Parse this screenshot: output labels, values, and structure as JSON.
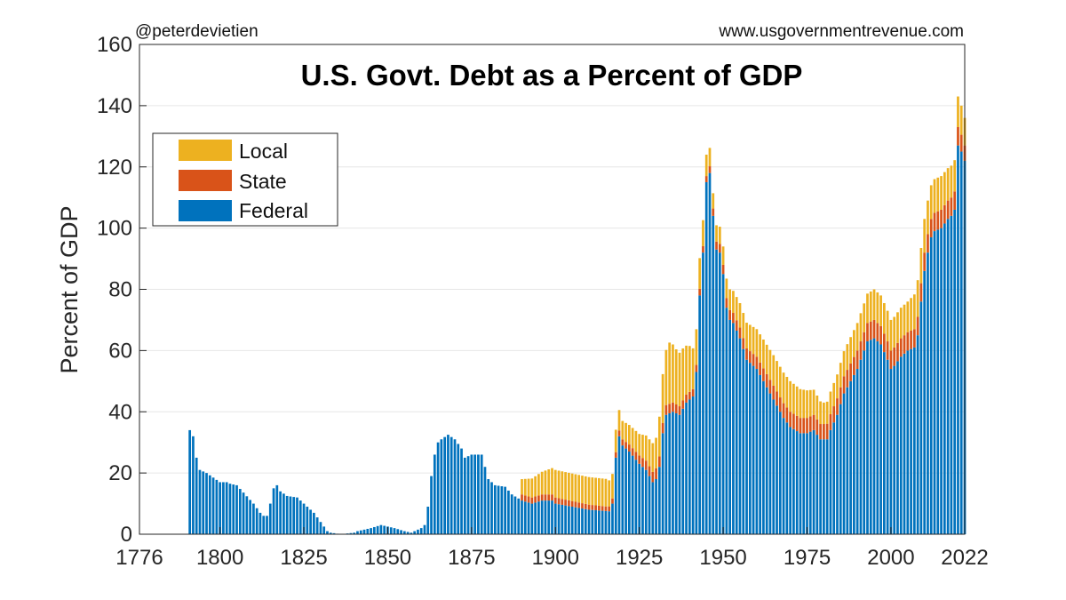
{
  "credit_left": "@peterdevietien",
  "credit_right": "www.usgovernmentrevenue.com",
  "chart_data": {
    "type": "bar",
    "stacked": true,
    "title": "U.S. Govt. Debt as a Percent of GDP",
    "xlabel": "",
    "ylabel": "Percent of GDP",
    "xlim": [
      1776,
      2022
    ],
    "ylim": [
      0,
      160
    ],
    "xticks": [
      1776,
      1800,
      1825,
      1850,
      1875,
      1900,
      1925,
      1950,
      1975,
      2000,
      2022
    ],
    "yticks": [
      0,
      20,
      40,
      60,
      80,
      100,
      120,
      140,
      160
    ],
    "grid": "horizontal",
    "legend": {
      "position": "top-left",
      "entries": [
        "Local",
        "State",
        "Federal"
      ]
    },
    "colors": {
      "Federal": "#0072bd",
      "State": "#d95319",
      "Local": "#edb120"
    },
    "x_years_start": 1791,
    "x_years_end": 2022,
    "federal_keypoints": [
      [
        1791,
        34
      ],
      [
        1792,
        32
      ],
      [
        1793,
        25
      ],
      [
        1794,
        21
      ],
      [
        1796,
        20
      ],
      [
        1800,
        17
      ],
      [
        1802,
        17
      ],
      [
        1803,
        16.5
      ],
      [
        1805,
        16
      ],
      [
        1810,
        10
      ],
      [
        1812,
        7
      ],
      [
        1813,
        6
      ],
      [
        1814,
        6
      ],
      [
        1815,
        10
      ],
      [
        1816,
        15
      ],
      [
        1817,
        16
      ],
      [
        1818,
        14
      ],
      [
        1820,
        12.5
      ],
      [
        1823,
        12
      ],
      [
        1825,
        10
      ],
      [
        1828,
        7
      ],
      [
        1830,
        4
      ],
      [
        1832,
        1
      ],
      [
        1833,
        0.5
      ],
      [
        1836,
        0
      ],
      [
        1840,
        0.5
      ],
      [
        1841,
        1
      ],
      [
        1843,
        1.5
      ],
      [
        1845,
        2
      ],
      [
        1848,
        3
      ],
      [
        1850,
        2.5
      ],
      [
        1852,
        2
      ],
      [
        1855,
        1
      ],
      [
        1857,
        0.5
      ],
      [
        1860,
        2
      ],
      [
        1861,
        3
      ],
      [
        1862,
        9
      ],
      [
        1863,
        19
      ],
      [
        1864,
        26
      ],
      [
        1865,
        30
      ],
      [
        1866,
        31
      ],
      [
        1868,
        32.5
      ],
      [
        1870,
        31
      ],
      [
        1872,
        28
      ],
      [
        1873,
        25
      ],
      [
        1875,
        26
      ],
      [
        1878,
        26
      ],
      [
        1879,
        22
      ],
      [
        1880,
        18
      ],
      [
        1882,
        16
      ],
      [
        1885,
        15.5
      ],
      [
        1887,
        13
      ],
      [
        1890,
        11
      ],
      [
        1893,
        10
      ],
      [
        1896,
        11
      ],
      [
        1899,
        11
      ],
      [
        1900,
        10
      ],
      [
        1905,
        9
      ],
      [
        1910,
        8
      ],
      [
        1916,
        7.5
      ],
      [
        1917,
        10
      ],
      [
        1918,
        25
      ],
      [
        1919,
        32
      ],
      [
        1920,
        29
      ],
      [
        1922,
        27
      ],
      [
        1925,
        23
      ],
      [
        1927,
        21
      ],
      [
        1929,
        17
      ],
      [
        1930,
        18
      ],
      [
        1931,
        22
      ],
      [
        1932,
        33
      ],
      [
        1933,
        39
      ],
      [
        1935,
        40
      ],
      [
        1937,
        39
      ],
      [
        1939,
        43
      ],
      [
        1940,
        44
      ],
      [
        1941,
        45
      ],
      [
        1942,
        53
      ],
      [
        1943,
        78
      ],
      [
        1944,
        92
      ],
      [
        1945,
        115
      ],
      [
        1946,
        118
      ],
      [
        1947,
        104
      ],
      [
        1948,
        93
      ],
      [
        1949,
        92
      ],
      [
        1950,
        85
      ],
      [
        1951,
        74
      ],
      [
        1952,
        70
      ],
      [
        1953,
        69
      ],
      [
        1955,
        64
      ],
      [
        1957,
        57
      ],
      [
        1960,
        54
      ],
      [
        1963,
        48
      ],
      [
        1965,
        44
      ],
      [
        1968,
        38
      ],
      [
        1970,
        35
      ],
      [
        1973,
        33
      ],
      [
        1975,
        33
      ],
      [
        1977,
        34
      ],
      [
        1979,
        31
      ],
      [
        1981,
        31
      ],
      [
        1982,
        34
      ],
      [
        1984,
        39
      ],
      [
        1986,
        46
      ],
      [
        1988,
        50
      ],
      [
        1990,
        54
      ],
      [
        1993,
        63
      ],
      [
        1995,
        64
      ],
      [
        1997,
        62
      ],
      [
        1999,
        57
      ],
      [
        2000,
        54
      ],
      [
        2001,
        55
      ],
      [
        2003,
        58
      ],
      [
        2005,
        60
      ],
      [
        2007,
        61
      ],
      [
        2008,
        65
      ],
      [
        2009,
        76
      ],
      [
        2010,
        86
      ],
      [
        2011,
        92
      ],
      [
        2012,
        97
      ],
      [
        2013,
        99
      ],
      [
        2015,
        100
      ],
      [
        2017,
        103
      ],
      [
        2018,
        104
      ],
      [
        2019,
        106
      ],
      [
        2020,
        127
      ],
      [
        2021,
        125
      ],
      [
        2022,
        122
      ]
    ],
    "state_keypoints": [
      [
        1791,
        0
      ],
      [
        1889,
        0
      ],
      [
        1890,
        2
      ],
      [
        1900,
        2
      ],
      [
        1915,
        1.5
      ],
      [
        1920,
        2
      ],
      [
        1930,
        3.5
      ],
      [
        1935,
        3
      ],
      [
        1940,
        2.5
      ],
      [
        1945,
        2
      ],
      [
        1950,
        3
      ],
      [
        1960,
        4
      ],
      [
        1970,
        5
      ],
      [
        1980,
        5
      ],
      [
        1990,
        6
      ],
      [
        2000,
        6
      ],
      [
        2008,
        6
      ],
      [
        2010,
        6
      ],
      [
        2015,
        6
      ],
      [
        2020,
        6
      ],
      [
        2022,
        5
      ]
    ],
    "local_keypoints": [
      [
        1791,
        0
      ],
      [
        1889,
        0
      ],
      [
        1890,
        5
      ],
      [
        1895,
        7
      ],
      [
        1900,
        9
      ],
      [
        1905,
        9
      ],
      [
        1910,
        9
      ],
      [
        1915,
        9
      ],
      [
        1917,
        8
      ],
      [
        1920,
        6
      ],
      [
        1925,
        7
      ],
      [
        1930,
        10
      ],
      [
        1932,
        16
      ],
      [
        1934,
        20
      ],
      [
        1936,
        18
      ],
      [
        1938,
        17
      ],
      [
        1940,
        15
      ],
      [
        1943,
        10
      ],
      [
        1945,
        7
      ],
      [
        1947,
        5
      ],
      [
        1950,
        6
      ],
      [
        1955,
        8
      ],
      [
        1960,
        9
      ],
      [
        1965,
        10
      ],
      [
        1970,
        10
      ],
      [
        1975,
        9
      ],
      [
        1980,
        7
      ],
      [
        1985,
        8
      ],
      [
        1990,
        9
      ],
      [
        1995,
        10
      ],
      [
        2000,
        10
      ],
      [
        2005,
        10
      ],
      [
        2008,
        12
      ],
      [
        2010,
        11
      ],
      [
        2015,
        11
      ],
      [
        2020,
        10
      ],
      [
        2022,
        9
      ]
    ]
  }
}
